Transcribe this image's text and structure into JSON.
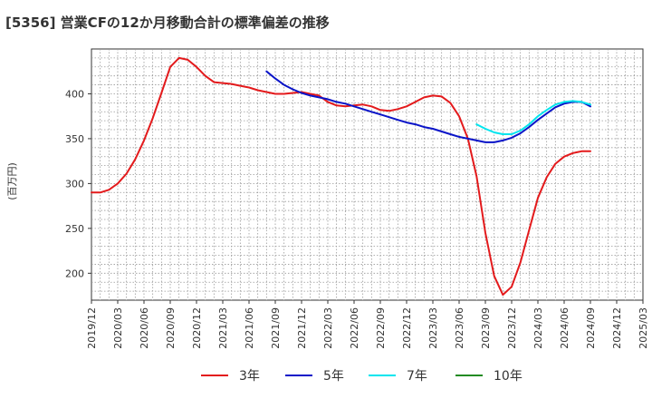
{
  "chart_data": {
    "type": "line",
    "title": "[5356]  営業CFの12か月移動合計の標準偏差の推移",
    "ylabel": "(百万円)",
    "xlabel": "",
    "ylim": [
      170,
      450
    ],
    "y_ticks": [
      200,
      250,
      300,
      350,
      400
    ],
    "x_range": [
      "2019-12",
      "2025-03"
    ],
    "x_ticks": [
      "2019/12",
      "2020/03",
      "2020/06",
      "2020/09",
      "2020/12",
      "2021/03",
      "2021/06",
      "2021/09",
      "2021/12",
      "2022/03",
      "2022/06",
      "2022/09",
      "2022/12",
      "2023/03",
      "2023/06",
      "2023/09",
      "2023/12",
      "2024/03",
      "2024/06",
      "2024/09",
      "2024/12",
      "2025/03"
    ],
    "grid": true,
    "legend_position": "bottom",
    "series": [
      {
        "name": "3年",
        "color": "#e31a1c",
        "points": [
          [
            "2019-12",
            290
          ],
          [
            "2020-01",
            290
          ],
          [
            "2020-02",
            293
          ],
          [
            "2020-03",
            300
          ],
          [
            "2020-04",
            311
          ],
          [
            "2020-05",
            327
          ],
          [
            "2020-06",
            348
          ],
          [
            "2020-07",
            373
          ],
          [
            "2020-08",
            401
          ],
          [
            "2020-09",
            430
          ],
          [
            "2020-10",
            440
          ],
          [
            "2020-11",
            438
          ],
          [
            "2020-12",
            430
          ],
          [
            "2021-01",
            420
          ],
          [
            "2021-02",
            413
          ],
          [
            "2021-03",
            412
          ],
          [
            "2021-04",
            411
          ],
          [
            "2021-05",
            409
          ],
          [
            "2021-06",
            407
          ],
          [
            "2021-07",
            404
          ],
          [
            "2021-08",
            402
          ],
          [
            "2021-09",
            400
          ],
          [
            "2021-10",
            400
          ],
          [
            "2021-11",
            401
          ],
          [
            "2021-12",
            402
          ],
          [
            "2022-01",
            400
          ],
          [
            "2022-02",
            398
          ],
          [
            "2022-03",
            391
          ],
          [
            "2022-04",
            387
          ],
          [
            "2022-05",
            386
          ],
          [
            "2022-06",
            387
          ],
          [
            "2022-07",
            388
          ],
          [
            "2022-08",
            386
          ],
          [
            "2022-09",
            382
          ],
          [
            "2022-10",
            381
          ],
          [
            "2022-11",
            383
          ],
          [
            "2022-12",
            386
          ],
          [
            "2023-01",
            391
          ],
          [
            "2023-02",
            396
          ],
          [
            "2023-03",
            398
          ],
          [
            "2023-04",
            397
          ],
          [
            "2023-05",
            390
          ],
          [
            "2023-06",
            375
          ],
          [
            "2023-07",
            350
          ],
          [
            "2023-08",
            308
          ],
          [
            "2023-09",
            245
          ],
          [
            "2023-10",
            197
          ],
          [
            "2023-11",
            176
          ],
          [
            "2023-12",
            185
          ],
          [
            "2024-01",
            212
          ],
          [
            "2024-02",
            248
          ],
          [
            "2024-03",
            284
          ],
          [
            "2024-04",
            307
          ],
          [
            "2024-05",
            322
          ],
          [
            "2024-06",
            330
          ],
          [
            "2024-07",
            334
          ],
          [
            "2024-08",
            336
          ],
          [
            "2024-09",
            336
          ]
        ]
      },
      {
        "name": "5年",
        "color": "#0a14c8",
        "points": [
          [
            "2021-08",
            425
          ],
          [
            "2021-09",
            417
          ],
          [
            "2021-10",
            410
          ],
          [
            "2021-11",
            405
          ],
          [
            "2021-12",
            401
          ],
          [
            "2022-01",
            398
          ],
          [
            "2022-02",
            396
          ],
          [
            "2022-03",
            394
          ],
          [
            "2022-04",
            391
          ],
          [
            "2022-05",
            389
          ],
          [
            "2022-06",
            386
          ],
          [
            "2022-07",
            383
          ],
          [
            "2022-08",
            380
          ],
          [
            "2022-09",
            377
          ],
          [
            "2022-10",
            374
          ],
          [
            "2022-11",
            371
          ],
          [
            "2022-12",
            368
          ],
          [
            "2023-01",
            366
          ],
          [
            "2023-02",
            363
          ],
          [
            "2023-03",
            361
          ],
          [
            "2023-04",
            358
          ],
          [
            "2023-05",
            355
          ],
          [
            "2023-06",
            352
          ],
          [
            "2023-07",
            350
          ],
          [
            "2023-08",
            348
          ],
          [
            "2023-09",
            346
          ],
          [
            "2023-10",
            346
          ],
          [
            "2023-11",
            348
          ],
          [
            "2023-12",
            351
          ],
          [
            "2024-01",
            356
          ],
          [
            "2024-02",
            363
          ],
          [
            "2024-03",
            371
          ],
          [
            "2024-04",
            378
          ],
          [
            "2024-05",
            385
          ],
          [
            "2024-06",
            389
          ],
          [
            "2024-07",
            391
          ],
          [
            "2024-08",
            391
          ],
          [
            "2024-09",
            386
          ]
        ]
      },
      {
        "name": "7年",
        "color": "#00e5ee",
        "points": [
          [
            "2023-08",
            366
          ],
          [
            "2023-09",
            361
          ],
          [
            "2023-10",
            357
          ],
          [
            "2023-11",
            355
          ],
          [
            "2023-12",
            355
          ],
          [
            "2024-01",
            359
          ],
          [
            "2024-02",
            366
          ],
          [
            "2024-03",
            375
          ],
          [
            "2024-04",
            382
          ],
          [
            "2024-05",
            388
          ],
          [
            "2024-06",
            391
          ],
          [
            "2024-07",
            392
          ],
          [
            "2024-08",
            391
          ],
          [
            "2024-09",
            388
          ]
        ]
      },
      {
        "name": "10年",
        "color": "#228b22",
        "points": []
      }
    ]
  }
}
